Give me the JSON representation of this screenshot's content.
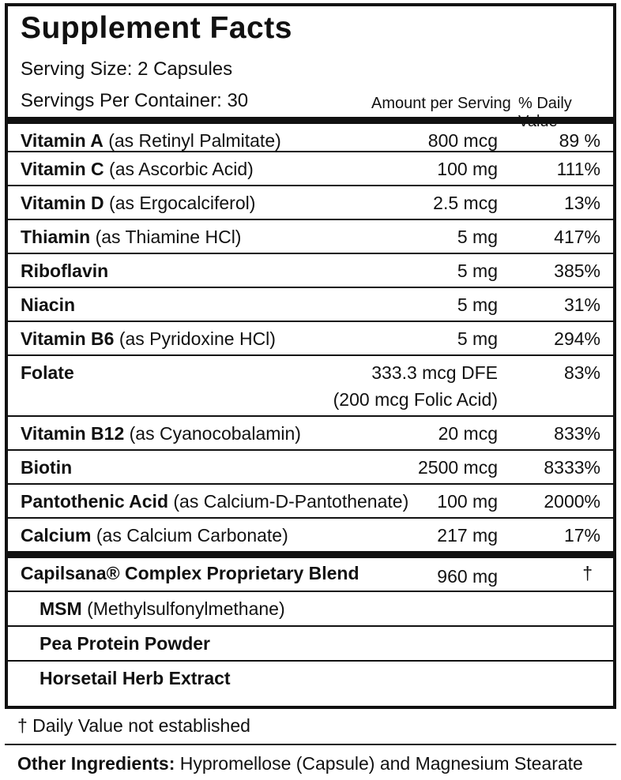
{
  "header": {
    "title": "Supplement Facts",
    "serving_size": "Serving Size: 2 Capsules",
    "servings_per_container": "Servings Per Container: 30",
    "amount_heading": "Amount per Serving",
    "dv_heading": "% Daily Value"
  },
  "nutrients": [
    {
      "name": "Vitamin A",
      "detail": "(as Retinyl Palmitate)",
      "amount": [
        "800 mcg"
      ],
      "dv": "89 %"
    },
    {
      "name": "Vitamin C",
      "detail": "(as Ascorbic Acid)",
      "amount": [
        "100 mg"
      ],
      "dv": "111%"
    },
    {
      "name": "Vitamin D",
      "detail": "(as Ergocalciferol)",
      "amount": [
        "2.5 mcg"
      ],
      "dv": "13%"
    },
    {
      "name": "Thiamin",
      "detail": "(as Thiamine HCl)",
      "amount": [
        "5 mg"
      ],
      "dv": "417%"
    },
    {
      "name": "Riboflavin",
      "amount": [
        "5 mg"
      ],
      "dv": "385%"
    },
    {
      "name": "Niacin",
      "amount": [
        "5 mg"
      ],
      "dv": "31%"
    },
    {
      "name": "Vitamin B6",
      "detail": "(as Pyridoxine HCl)",
      "amount": [
        "5 mg"
      ],
      "dv": "294%"
    },
    {
      "name": "Folate",
      "amount": [
        "333.3 mcg DFE",
        "(200 mcg Folic Acid)"
      ],
      "dv": "83%"
    },
    {
      "name": "Vitamin B12",
      "detail": "(as Cyanocobalamin)",
      "amount": [
        "20 mcg"
      ],
      "dv": "833%"
    },
    {
      "name": "Biotin",
      "amount": [
        "2500 mcg"
      ],
      "dv": "8333%"
    },
    {
      "name": "Pantothenic Acid",
      "detail": "(as Calcium-D-Pantothenate)",
      "amount": [
        "100 mg"
      ],
      "dv": "2000%"
    },
    {
      "name": "Calcium",
      "detail": "(as Calcium Carbonate)",
      "amount": [
        "217 mg"
      ],
      "dv": "17%"
    }
  ],
  "blend": {
    "name": "Capilsana® Complex Proprietary Blend",
    "amount": "960 mg",
    "dv": "†",
    "items": [
      {
        "name": "MSM",
        "detail": "(Methylsulfonylmethane)"
      },
      {
        "name": "Pea Protein Powder"
      },
      {
        "name": "Horsetail Herb Extract"
      }
    ]
  },
  "footnote": "† Daily Value not established",
  "other_ingredients": {
    "label": "Other Ingredients:",
    "text": "Hypromellose (Capsule) and Magnesium Stearate"
  }
}
